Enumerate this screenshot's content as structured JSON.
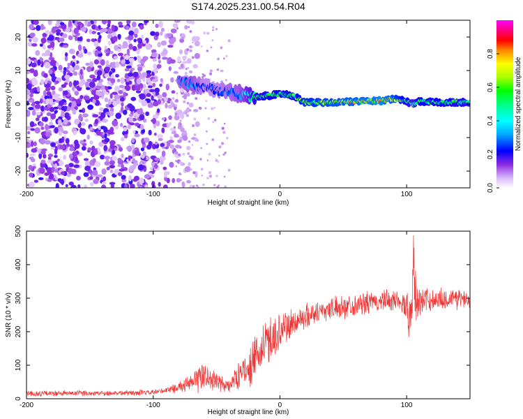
{
  "title": "S174.2025.231.00.54.R04",
  "chart_data": [
    {
      "type": "heatmap",
      "title": "S174.2025.231.00.54.R04",
      "xlabel": "Height of straight line (km)",
      "ylabel": "Frequency (Hz)",
      "xlim": [
        -200,
        150
      ],
      "ylim": [
        -25,
        25
      ],
      "xticks": [
        -200,
        -100,
        0,
        100
      ],
      "yticks": [
        -20,
        -10,
        0,
        10,
        20
      ],
      "x_tick_labels": [
        "-200",
        "-100",
        "0",
        "100"
      ],
      "y_tick_labels": [
        "-20",
        "-10",
        "0",
        "10",
        "20"
      ],
      "colorbar": {
        "label": "Normalized spectral amplitude",
        "range": [
          0,
          1
        ],
        "ticks": [
          0.0,
          0.2,
          0.4,
          0.6,
          0.8
        ],
        "tick_labels": [
          "0.0",
          "0.2",
          "0.4",
          "0.6",
          "0.8"
        ],
        "colors": [
          "#ffffff",
          "#8a2be2",
          "#0000ff",
          "#00ffff",
          "#00ff00",
          "#ffff00",
          "#ff0000",
          "#ff00ff"
        ]
      },
      "signal_track": {
        "x": [
          -80,
          -70,
          -60,
          -50,
          -40,
          -30,
          -20,
          -10,
          0,
          10,
          20,
          40,
          60,
          80,
          90,
          100,
          105,
          110,
          130,
          150
        ],
        "freq": [
          7,
          6,
          5,
          4,
          3.5,
          3,
          2,
          2.5,
          3,
          2.5,
          0.5,
          0.5,
          0.8,
          1.0,
          1.5,
          0.8,
          0,
          0.8,
          0.5,
          0.5
        ],
        "amplitude": [
          0.3,
          0.35,
          0.25,
          0.25,
          0.3,
          0.35,
          0.55,
          0.6,
          0.6,
          0.6,
          0.7,
          0.75,
          0.8,
          0.85,
          0.75,
          0.6,
          0.5,
          0.6,
          0.6,
          0.55
        ]
      },
      "noise_region": {
        "x_range": [
          -200,
          -80
        ],
        "amplitude": [
          0.0,
          0.2
        ]
      }
    },
    {
      "type": "line",
      "xlabel": "Height of straight line (km)",
      "ylabel": "SNR (10 * v/v)",
      "xlim": [
        -200,
        150
      ],
      "ylim": [
        0,
        500
      ],
      "xticks": [
        -200,
        -100,
        0,
        100
      ],
      "yticks": [
        0,
        100,
        200,
        300,
        400,
        500
      ],
      "x_tick_labels": [
        "-200",
        "-100",
        "0",
        "100"
      ],
      "y_tick_labels": [
        "0",
        "100",
        "200",
        "300",
        "400",
        "500"
      ],
      "color": "#ee3333",
      "envelope": {
        "x": [
          -200,
          -100,
          -90,
          -80,
          -70,
          -62,
          -55,
          -45,
          -40,
          -30,
          -20,
          -10,
          0,
          10,
          20,
          30,
          40,
          60,
          80,
          95,
          103,
          106,
          110,
          120,
          140,
          150
        ],
        "mean": [
          15,
          18,
          25,
          35,
          45,
          70,
          60,
          40,
          40,
          80,
          110,
          170,
          200,
          225,
          245,
          260,
          270,
          280,
          290,
          295,
          250,
          310,
          290,
          295,
          300,
          300
        ],
        "amp": [
          10,
          10,
          12,
          18,
          30,
          60,
          40,
          30,
          30,
          50,
          80,
          90,
          70,
          55,
          45,
          40,
          40,
          40,
          40,
          40,
          90,
          120,
          60,
          40,
          40,
          40
        ]
      },
      "sample_count": 1500
    }
  ]
}
